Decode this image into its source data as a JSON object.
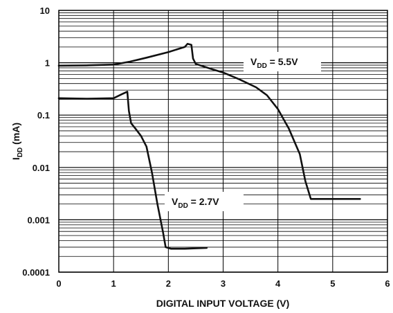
{
  "chart_data": {
    "type": "line",
    "xlabel": "DIGITAL INPUT VOLTAGE (V)",
    "ylabel_main": "I",
    "ylabel_sub": "DD",
    "ylabel_unit": " (mA)",
    "xlim": [
      0,
      6
    ],
    "ylim": [
      0.0001,
      10
    ],
    "yscale": "log",
    "grid": true,
    "x_ticks": [
      {
        "value": 0,
        "label": "0"
      },
      {
        "value": 1,
        "label": "1"
      },
      {
        "value": 2,
        "label": "2"
      },
      {
        "value": 3,
        "label": "3"
      },
      {
        "value": 4,
        "label": "4"
      },
      {
        "value": 5,
        "label": "5"
      },
      {
        "value": 6,
        "label": "6"
      }
    ],
    "y_ticks": [
      {
        "value": 10,
        "label": "10"
      },
      {
        "value": 1,
        "label": "1"
      },
      {
        "value": 0.1,
        "label": "0.1"
      },
      {
        "value": 0.01,
        "label": "0.01"
      },
      {
        "value": 0.001,
        "label": "0.001"
      },
      {
        "value": 0.0001,
        "label": "0.0001"
      }
    ],
    "series": [
      {
        "name": "VDD = 5.5V",
        "label_main": "V",
        "label_sub": "DD",
        "label_rest": " = 5.5V",
        "points": [
          [
            0,
            0.88
          ],
          [
            0.5,
            0.89
          ],
          [
            1.0,
            0.92
          ],
          [
            1.3,
            1.05
          ],
          [
            1.6,
            1.25
          ],
          [
            2.0,
            1.6
          ],
          [
            2.3,
            2.0
          ],
          [
            2.35,
            2.3
          ],
          [
            2.42,
            2.2
          ],
          [
            2.45,
            1.2
          ],
          [
            2.5,
            0.95
          ],
          [
            2.8,
            0.75
          ],
          [
            3.0,
            0.65
          ],
          [
            3.3,
            0.48
          ],
          [
            3.6,
            0.34
          ],
          [
            3.8,
            0.24
          ],
          [
            4.0,
            0.13
          ],
          [
            4.2,
            0.055
          ],
          [
            4.4,
            0.018
          ],
          [
            4.5,
            0.0055
          ],
          [
            4.6,
            0.0025
          ],
          [
            4.8,
            0.0025
          ],
          [
            5.5,
            0.0025
          ]
        ]
      },
      {
        "name": "VDD = 2.7V",
        "label_main": "V",
        "label_sub": "DD",
        "label_rest": " = 2.7V",
        "points": [
          [
            0,
            0.21
          ],
          [
            0.5,
            0.205
          ],
          [
            1.0,
            0.21
          ],
          [
            1.15,
            0.25
          ],
          [
            1.25,
            0.28
          ],
          [
            1.28,
            0.12
          ],
          [
            1.32,
            0.07
          ],
          [
            1.4,
            0.055
          ],
          [
            1.5,
            0.04
          ],
          [
            1.6,
            0.025
          ],
          [
            1.7,
            0.008
          ],
          [
            1.8,
            0.002
          ],
          [
            1.9,
            0.0006
          ],
          [
            1.95,
            0.0003
          ],
          [
            2.05,
            0.00028
          ],
          [
            2.3,
            0.00028
          ],
          [
            2.7,
            0.00029
          ]
        ]
      }
    ]
  }
}
